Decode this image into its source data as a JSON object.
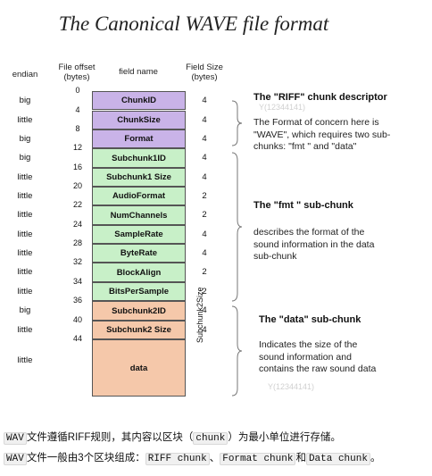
{
  "title": "The Canonical WAVE file format",
  "headers": {
    "endian": "endian",
    "offset": "File offset\n(bytes)",
    "field": "field name",
    "size": "Field Size\n(bytes)"
  },
  "rows": [
    {
      "endian": "big",
      "offset": "0",
      "field": "ChunkID",
      "size": "4",
      "color": "#c9b3e8"
    },
    {
      "endian": "little",
      "offset": "4",
      "field": "ChunkSize",
      "size": "4",
      "color": "#c9b3e8"
    },
    {
      "endian": "big",
      "offset": "8",
      "field": "Format",
      "size": "4",
      "color": "#c9b3e8"
    },
    {
      "endian": "big",
      "offset": "12",
      "field": "Subchunk1ID",
      "size": "4",
      "color": "#c8f0c8"
    },
    {
      "endian": "little",
      "offset": "16",
      "field": "Subchunk1 Size",
      "size": "4",
      "color": "#c8f0c8"
    },
    {
      "endian": "little",
      "offset": "20",
      "field": "AudioFormat",
      "size": "2",
      "color": "#c8f0c8"
    },
    {
      "endian": "little",
      "offset": "22",
      "field": "NumChannels",
      "size": "2",
      "color": "#c8f0c8"
    },
    {
      "endian": "little",
      "offset": "24",
      "field": "SampleRate",
      "size": "4",
      "color": "#c8f0c8"
    },
    {
      "endian": "little",
      "offset": "28",
      "field": "ByteRate",
      "size": "4",
      "color": "#c8f0c8"
    },
    {
      "endian": "little",
      "offset": "32",
      "field": "BlockAlign",
      "size": "2",
      "color": "#c8f0c8"
    },
    {
      "endian": "little",
      "offset": "34",
      "field": "BitsPerSample",
      "size": "2",
      "color": "#c8f0c8"
    },
    {
      "endian": "big",
      "offset": "36",
      "field": "Subchunk2ID",
      "size": "4",
      "color": "#f5c8aa"
    },
    {
      "endian": "little",
      "offset": "40",
      "field": "Subchunk2 Size",
      "size": "4",
      "color": "#f5c8aa"
    },
    {
      "endian": "little",
      "offset": "44",
      "field": "data",
      "size": "",
      "color": "#f5c8aa"
    }
  ],
  "data_size_label": "Subchunk2Size",
  "descriptions": {
    "riff": {
      "title": "The \"RIFF\" chunk descriptor",
      "text": "The Format of concern here is \"WAVE\", which requires two sub-chunks: \"fmt \" and \"data\""
    },
    "fmt": {
      "title": "The \"fmt \" sub-chunk",
      "text": "describes the format of the sound information in the data sub-chunk"
    },
    "data": {
      "title": "The \"data\" sub-chunk",
      "text": "Indicates the size of the sound information and contains the raw sound data"
    }
  },
  "watermarks": [
    "Y(12344141)",
    "Y(12344141)"
  ],
  "footer": {
    "line1": {
      "code1": "WAV",
      "t1": "文件遵循RIFF规则，其内容以区块（",
      "code2": "chunk",
      "t2": "）为最小单位进行存储。"
    },
    "line2": {
      "code1": "WAV",
      "t1": "文件一般由3个区块组成：",
      "code2": "RIFF chunk",
      "t2": "、",
      "code3": "Format chunk",
      "t3": "和",
      "code4": "Data chunk",
      "t4": "。"
    }
  }
}
